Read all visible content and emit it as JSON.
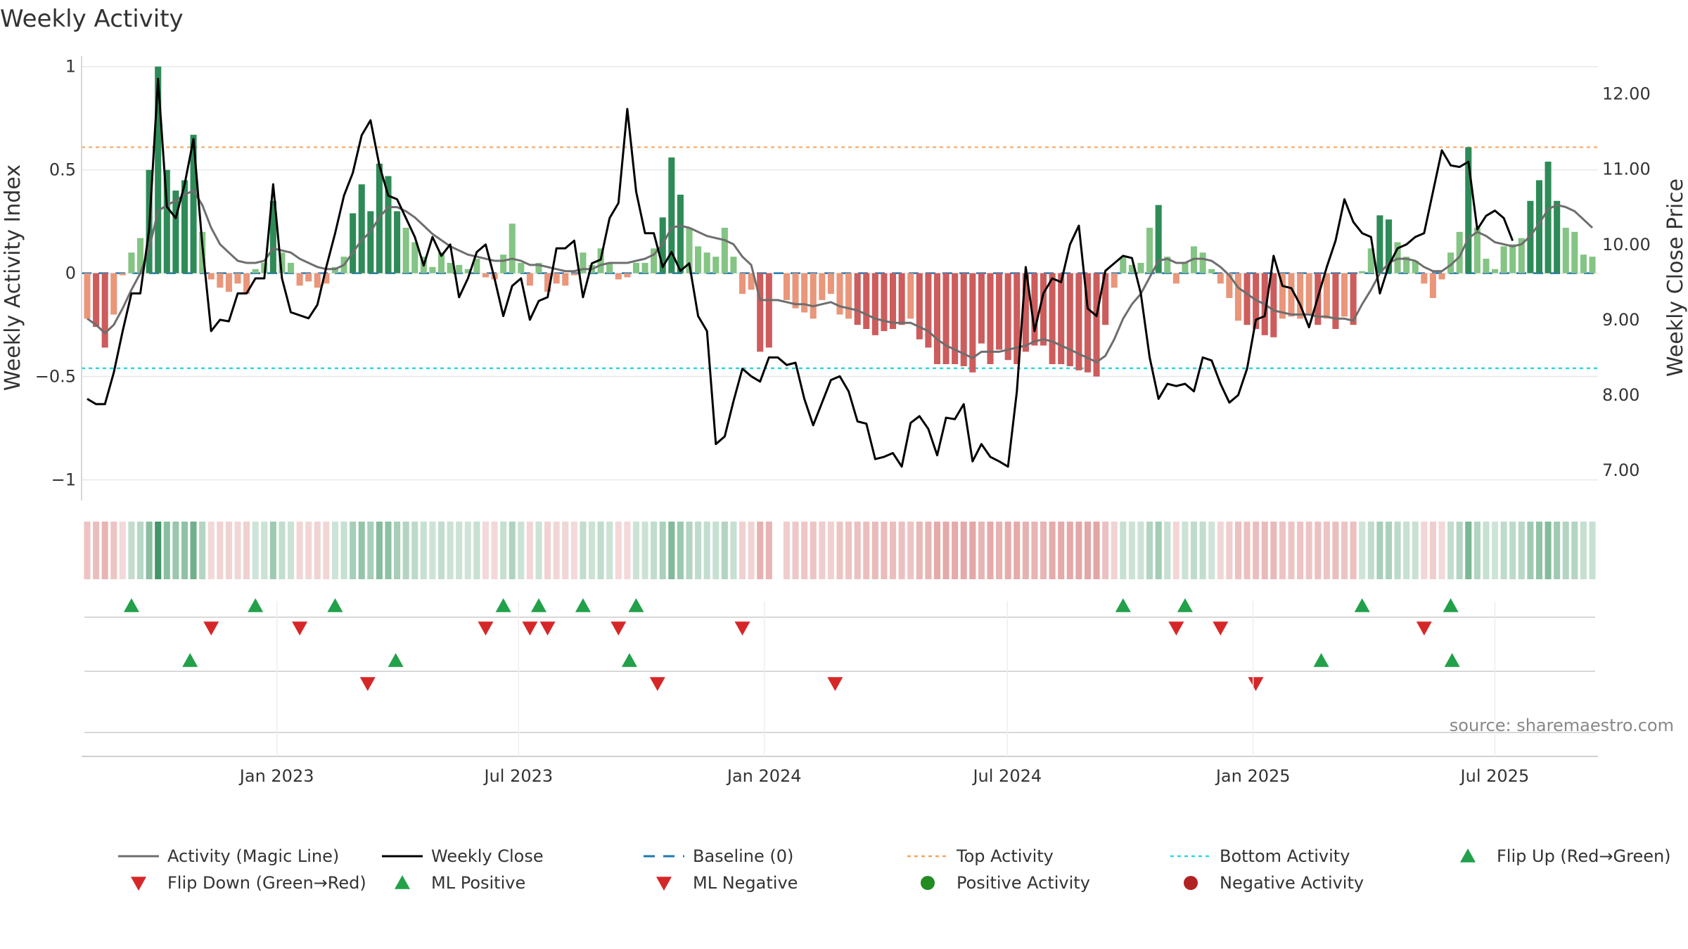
{
  "chart_data": {
    "type": "bar",
    "title": "Weekly Activity",
    "ylabel": "Weekly Activity Index",
    "y2label": "Weekly Close Price",
    "ylim": [
      -1.1,
      1.05
    ],
    "y2lim": [
      6.6,
      12.5
    ],
    "yticks": [
      -1,
      -0.5,
      0,
      0.5,
      1
    ],
    "ytick_labels": [
      "−1",
      "−0.5",
      "0",
      "0.5",
      "1"
    ],
    "y2ticks": [
      7,
      8,
      9,
      10,
      11,
      12
    ],
    "y2tick_labels": [
      "7.00",
      "8.00",
      "9.00",
      "10.00",
      "11.00",
      "12.00"
    ],
    "top_activity": 0.61,
    "bottom_activity": -0.46,
    "start_date": "2022-08-12",
    "end_date": "2025-09-12",
    "x_ticks": [
      {
        "label": "Jan 2023",
        "date": "2023-01-01"
      },
      {
        "label": "Jul 2023",
        "date": "2023-07-01"
      },
      {
        "label": "Jan 2024",
        "date": "2024-01-01"
      },
      {
        "label": "Jul 2024",
        "date": "2024-07-01"
      },
      {
        "label": "Jan 2025",
        "date": "2025-01-01"
      },
      {
        "label": "Jul 2025",
        "date": "2025-07-01"
      }
    ],
    "activity": [
      -0.22,
      -0.26,
      -0.36,
      -0.2,
      -0.01,
      0.1,
      0.17,
      0.5,
      1.0,
      0.5,
      0.4,
      0.45,
      0.67,
      0.2,
      -0.03,
      -0.07,
      -0.09,
      -0.05,
      -0.1,
      0.02,
      0.05,
      0.35,
      0.1,
      0.05,
      -0.06,
      -0.04,
      -0.07,
      -0.05,
      0.03,
      0.08,
      0.29,
      0.43,
      0.3,
      0.53,
      0.47,
      0.3,
      0.22,
      0.15,
      0.08,
      0.03,
      0.1,
      0.05,
      0.04,
      0.02,
      0.07,
      -0.02,
      -0.03,
      0.09,
      0.24,
      0.05,
      -0.06,
      0.05,
      -0.09,
      -0.05,
      -0.06,
      -0.01,
      0.1,
      0.04,
      0.12,
      0.05,
      -0.03,
      -0.02,
      0.05,
      0.05,
      0.12,
      0.27,
      0.56,
      0.38,
      0.22,
      0.13,
      0.1,
      0.08,
      0.22,
      0.08,
      -0.1,
      -0.08,
      -0.38,
      -0.36,
      null,
      -0.13,
      -0.17,
      -0.19,
      -0.22,
      -0.13,
      -0.1,
      -0.2,
      -0.22,
      -0.25,
      -0.27,
      -0.3,
      -0.28,
      -0.27,
      -0.25,
      -0.22,
      -0.32,
      -0.36,
      -0.44,
      -0.44,
      -0.44,
      -0.45,
      -0.48,
      -0.34,
      -0.44,
      -0.37,
      -0.42,
      -0.44,
      -0.38,
      -0.35,
      -0.35,
      -0.44,
      -0.44,
      -0.45,
      -0.47,
      -0.48,
      -0.5,
      -0.25,
      -0.07,
      0.08,
      0.04,
      0.05,
      0.22,
      0.33,
      0.08,
      -0.05,
      0.05,
      0.13,
      0.1,
      0.02,
      -0.05,
      -0.12,
      -0.23,
      -0.25,
      -0.27,
      -0.3,
      -0.31,
      -0.22,
      -0.21,
      -0.22,
      -0.2,
      -0.25,
      -0.22,
      -0.27,
      -0.21,
      -0.25,
      0.01,
      0.12,
      0.28,
      0.26,
      0.15,
      0.08,
      0.06,
      -0.05,
      -0.12,
      -0.03,
      0.1,
      0.2,
      0.61,
      0.22,
      0.07,
      0.02,
      0.13,
      0.14,
      0.17,
      0.35,
      0.45,
      0.54,
      0.35,
      0.22,
      0.2,
      0.09,
      0.08
    ],
    "close": [
      7.95,
      7.88,
      7.88,
      8.3,
      8.85,
      9.35,
      9.35,
      10.2,
      12.2,
      10.5,
      10.35,
      10.8,
      11.4,
      10.0,
      8.85,
      9.0,
      8.98,
      9.35,
      9.35,
      9.55,
      9.55,
      10.8,
      9.55,
      9.1,
      9.06,
      9.02,
      9.2,
      9.7,
      10.15,
      10.65,
      10.95,
      11.45,
      11.65,
      11.05,
      10.65,
      10.6,
      10.35,
      10.1,
      9.72,
      10.1,
      9.85,
      10.0,
      9.3,
      9.55,
      9.9,
      10.0,
      9.55,
      9.05,
      9.45,
      9.55,
      9.0,
      9.25,
      9.3,
      9.95,
      9.95,
      10.05,
      9.3,
      9.75,
      9.8,
      10.35,
      10.55,
      11.8,
      10.7,
      10.15,
      10.15,
      9.7,
      9.9,
      9.65,
      9.75,
      9.05,
      8.85,
      7.35,
      7.45,
      7.92,
      8.35,
      8.25,
      8.18,
      8.5,
      8.5,
      8.4,
      8.43,
      7.95,
      7.6,
      7.9,
      8.2,
      8.25,
      8.05,
      7.65,
      7.62,
      7.15,
      7.18,
      7.23,
      7.05,
      7.63,
      7.72,
      7.55,
      7.2,
      7.7,
      7.68,
      7.88,
      7.12,
      7.35,
      7.18,
      7.12,
      7.05,
      8.05,
      9.7,
      8.85,
      9.35,
      9.55,
      9.5,
      10.0,
      10.25,
      9.15,
      9.05,
      9.65,
      9.75,
      9.85,
      9.82,
      9.35,
      8.5,
      7.95,
      8.15,
      8.12,
      8.15,
      8.05,
      8.5,
      8.46,
      8.15,
      7.9,
      8.0,
      8.35,
      9.0,
      9.05,
      9.85,
      9.45,
      9.42,
      9.2,
      8.9,
      9.3,
      9.7,
      10.05,
      10.6,
      10.3,
      10.15,
      10.1,
      9.35,
      9.72,
      9.95,
      10.0,
      10.1,
      10.15,
      10.7,
      11.25,
      11.05,
      11.03,
      11.1,
      10.2,
      10.38,
      10.45,
      10.35,
      10.05
    ],
    "magic_line": [
      -0.22,
      -0.25,
      -0.29,
      -0.25,
      -0.17,
      -0.08,
      0.0,
      0.12,
      0.3,
      0.33,
      0.35,
      0.38,
      0.4,
      0.33,
      0.22,
      0.14,
      0.1,
      0.06,
      0.05,
      0.05,
      0.06,
      0.12,
      0.11,
      0.1,
      0.07,
      0.05,
      0.03,
      0.02,
      0.02,
      0.04,
      0.1,
      0.16,
      0.2,
      0.27,
      0.32,
      0.32,
      0.3,
      0.27,
      0.23,
      0.19,
      0.16,
      0.13,
      0.11,
      0.09,
      0.08,
      0.07,
      0.06,
      0.06,
      0.07,
      0.06,
      0.04,
      0.04,
      0.03,
      0.02,
      0.01,
      0.01,
      0.02,
      0.02,
      0.04,
      0.05,
      0.05,
      0.05,
      0.06,
      0.07,
      0.09,
      0.14,
      0.22,
      0.23,
      0.22,
      0.2,
      0.18,
      0.17,
      0.16,
      0.14,
      0.08,
      0.04,
      -0.13,
      -0.13,
      -0.13,
      -0.14,
      -0.15,
      -0.15,
      -0.16,
      -0.15,
      -0.14,
      -0.16,
      -0.17,
      -0.18,
      -0.2,
      -0.22,
      -0.23,
      -0.24,
      -0.24,
      -0.24,
      -0.26,
      -0.28,
      -0.32,
      -0.35,
      -0.37,
      -0.39,
      -0.41,
      -0.38,
      -0.38,
      -0.38,
      -0.37,
      -0.36,
      -0.35,
      -0.33,
      -0.32,
      -0.33,
      -0.35,
      -0.37,
      -0.39,
      -0.41,
      -0.43,
      -0.4,
      -0.32,
      -0.22,
      -0.15,
      -0.1,
      -0.02,
      0.06,
      0.07,
      0.05,
      0.05,
      0.07,
      0.07,
      0.06,
      0.03,
      -0.01,
      -0.07,
      -0.1,
      -0.13,
      -0.15,
      -0.18,
      -0.19,
      -0.2,
      -0.2,
      -0.2,
      -0.21,
      -0.21,
      -0.22,
      -0.22,
      -0.23,
      -0.15,
      -0.08,
      0.0,
      0.05,
      0.07,
      0.07,
      0.06,
      0.03,
      0.01,
      0.01,
      0.04,
      0.08,
      0.17,
      0.2,
      0.18,
      0.15,
      0.14,
      0.13,
      0.14,
      0.18,
      0.24,
      0.31,
      0.33,
      0.32,
      0.3,
      0.26,
      0.22
    ],
    "ml_positive_dates": [
      "2022-10-28",
      "2023-03-31",
      "2023-09-22",
      "2025-02-21",
      "2025-05-30"
    ],
    "ml_negative_dates": [
      "2023-03-10",
      "2023-10-13",
      "2024-02-23",
      "2025-01-03"
    ],
    "legend": [
      "Activity (Magic Line)",
      "Weekly Close",
      "Baseline (0)",
      "Top Activity",
      "Bottom Activity",
      "Flip Up (Red→Green)",
      "Flip Down (Green→Red)",
      "ML Positive",
      "ML Negative",
      "Positive Activity",
      "Negative Activity"
    ],
    "source": "source: sharemaestro.com"
  },
  "colors": {
    "pos_strong": "#2e8b57",
    "pos_light": "#84c484",
    "neg_strong": "#cd5c5c",
    "neg_light": "#e9967a",
    "magic_line": "#6e6e6e",
    "close": "#000000",
    "baseline": "#1f77b4",
    "top": "#f4a460",
    "bottom": "#30d5e0",
    "up_marker": "#22a04a",
    "down_marker": "#d62728",
    "pos_dot": "#228b22",
    "neg_dot": "#b22222",
    "grid": "#e8e8e8",
    "strip_pos": "#2e8b57",
    "strip_neg": "#cd5c5c"
  }
}
